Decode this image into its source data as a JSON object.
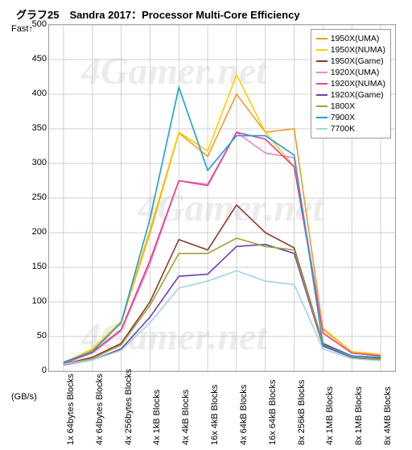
{
  "chart": {
    "type": "line",
    "title": "グラフ25　Sandra 2017：Processor Multi-Core Efficiency",
    "ylabel": "Fast↑",
    "xlabel": "(GB/s)",
    "ylim": [
      0,
      500
    ],
    "ytick_step": 50,
    "background_color": "#ffffff",
    "grid_color": "#bfbfbf",
    "border_color": "#999999",
    "title_fontsize": 13,
    "tick_fontsize": 11,
    "legend_fontsize": 10.5,
    "line_width": 1.6,
    "watermark_text": "4Gamer.net",
    "watermark_color": "rgba(200,200,200,0.35)",
    "categories": [
      "1x 64bytes Blocks",
      "4x 64bytes Blocks",
      "4x 256bytes Blocks",
      "4x 1kB Blocks",
      "4x 4kB Blocks",
      "16x 4kB Blocks",
      "4x 64kB Blocks",
      "16x 64kB Blocks",
      "8x 256kB Blocks",
      "4x 1MB Blocks",
      "8x 1MB Blocks",
      "8x 4MB Blocks"
    ],
    "series": [
      {
        "name": "1950X(UMA)",
        "color": "#f59a22",
        "values": [
          12,
          30,
          70,
          200,
          344,
          310,
          400,
          345,
          350,
          60,
          28,
          24
        ]
      },
      {
        "name": "1950X(NUMA)",
        "color": "#ffcc00",
        "values": [
          12,
          32,
          72,
          205,
          345,
          318,
          428,
          345,
          295,
          62,
          28,
          24
        ]
      },
      {
        "name": "1950X(Game)",
        "color": "#8a3a2a",
        "values": [
          10,
          20,
          40,
          100,
          190,
          175,
          240,
          200,
          178,
          40,
          22,
          18
        ]
      },
      {
        "name": "1920X(UMA)",
        "color": "#e28ad6",
        "values": [
          11,
          26,
          58,
          155,
          275,
          270,
          345,
          315,
          308,
          55,
          26,
          22
        ]
      },
      {
        "name": "1920X(NUMA)",
        "color": "#e83e8c",
        "values": [
          11,
          27,
          60,
          160,
          275,
          268,
          345,
          335,
          295,
          55,
          26,
          22
        ]
      },
      {
        "name": "1920X(Game)",
        "color": "#6a3fb0",
        "values": [
          9,
          16,
          32,
          78,
          137,
          140,
          180,
          183,
          170,
          36,
          20,
          16
        ]
      },
      {
        "name": "1800X",
        "color": "#9aa53a",
        "values": [
          10,
          18,
          38,
          95,
          170,
          170,
          192,
          180,
          175,
          38,
          21,
          17
        ]
      },
      {
        "name": "7900X",
        "color": "#1aa0d8",
        "values": [
          13,
          28,
          70,
          220,
          410,
          290,
          340,
          340,
          312,
          38,
          22,
          20
        ]
      },
      {
        "name": "7700K",
        "color": "#9fd4e6",
        "values": [
          10,
          16,
          30,
          70,
          120,
          130,
          145,
          130,
          125,
          32,
          18,
          15
        ]
      }
    ]
  }
}
